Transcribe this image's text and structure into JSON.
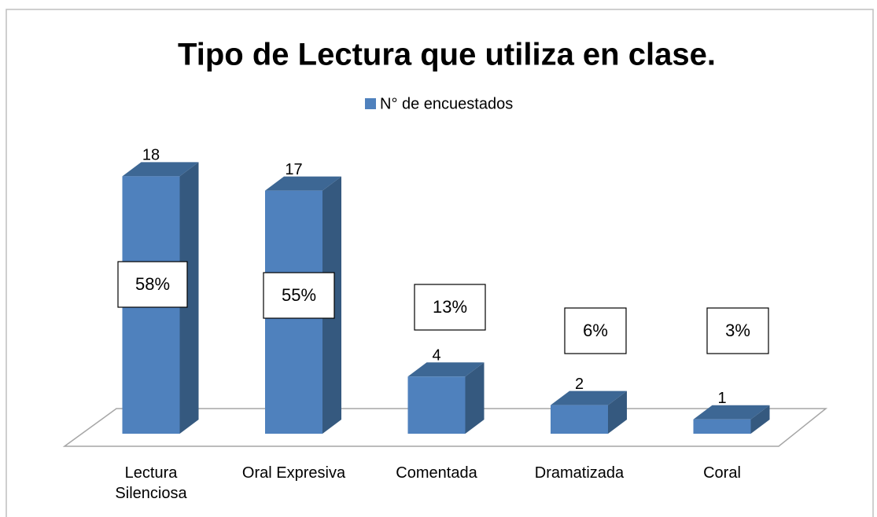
{
  "chart_data": {
    "type": "bar3d",
    "title": "Tipo de Lectura que utiliza en clase.",
    "categories": [
      "Lectura Silenciosa",
      "Oral Expresiva",
      "Comentada",
      "Dramatizada",
      "Coral"
    ],
    "series": [
      {
        "name": "N° de encuestados",
        "color": "#4f81bd",
        "values": [
          18,
          17,
          4,
          2,
          1
        ]
      }
    ],
    "annotations": [
      "58%",
      "55%",
      "13%",
      "6%",
      "3%"
    ],
    "ylim": [
      0,
      20
    ],
    "legend": "top"
  }
}
